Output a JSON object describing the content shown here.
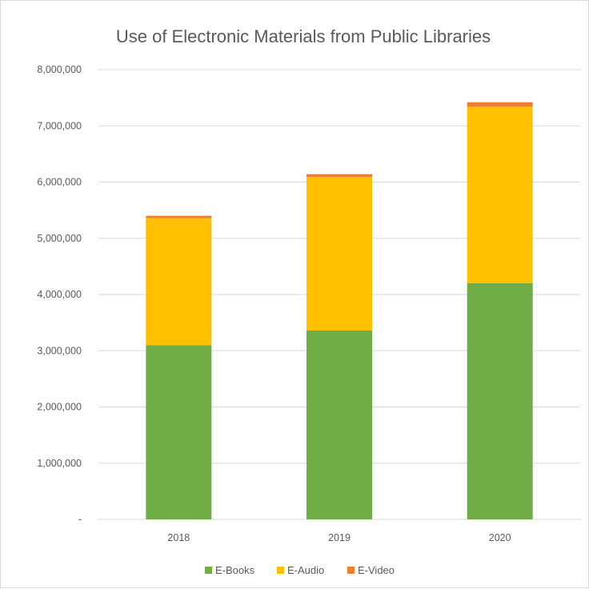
{
  "chart_data": {
    "type": "bar",
    "stacked": true,
    "title": "Use of Electronic Materials from Public Libraries",
    "xlabel": "",
    "ylabel": "",
    "categories": [
      "2018",
      "2019",
      "2020"
    ],
    "series": [
      {
        "name": "E-Books",
        "color": "#70ad47",
        "values": [
          3100000,
          3360000,
          4200000
        ]
      },
      {
        "name": "E-Audio",
        "color": "#ffc000",
        "values": [
          2260000,
          2730000,
          3140000
        ]
      },
      {
        "name": "E-Video",
        "color": "#ed7d31",
        "values": [
          40000,
          50000,
          80000
        ]
      }
    ],
    "ylim": [
      0,
      8000000
    ],
    "yticks": [
      "-",
      "1,000,000",
      "2,000,000",
      "3,000,000",
      "4,000,000",
      "5,000,000",
      "6,000,000",
      "7,000,000",
      "8,000,000"
    ],
    "ytick_values": [
      0,
      1000000,
      2000000,
      3000000,
      4000000,
      5000000,
      6000000,
      7000000,
      8000000
    ],
    "grid": true,
    "legend_position": "bottom"
  }
}
